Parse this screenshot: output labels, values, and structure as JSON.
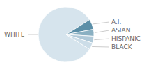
{
  "chart_data": {
    "type": "pie",
    "categories": [
      "WHITE",
      "A.I.",
      "ASIAN",
      "HISPANIC",
      "BLACK"
    ],
    "values": [
      82,
      6,
      4,
      4,
      4
    ],
    "colors": [
      "#d6e4ed",
      "#5b8fa8",
      "#8ab0c2",
      "#b0c9d8",
      "#ccdde8"
    ]
  }
}
